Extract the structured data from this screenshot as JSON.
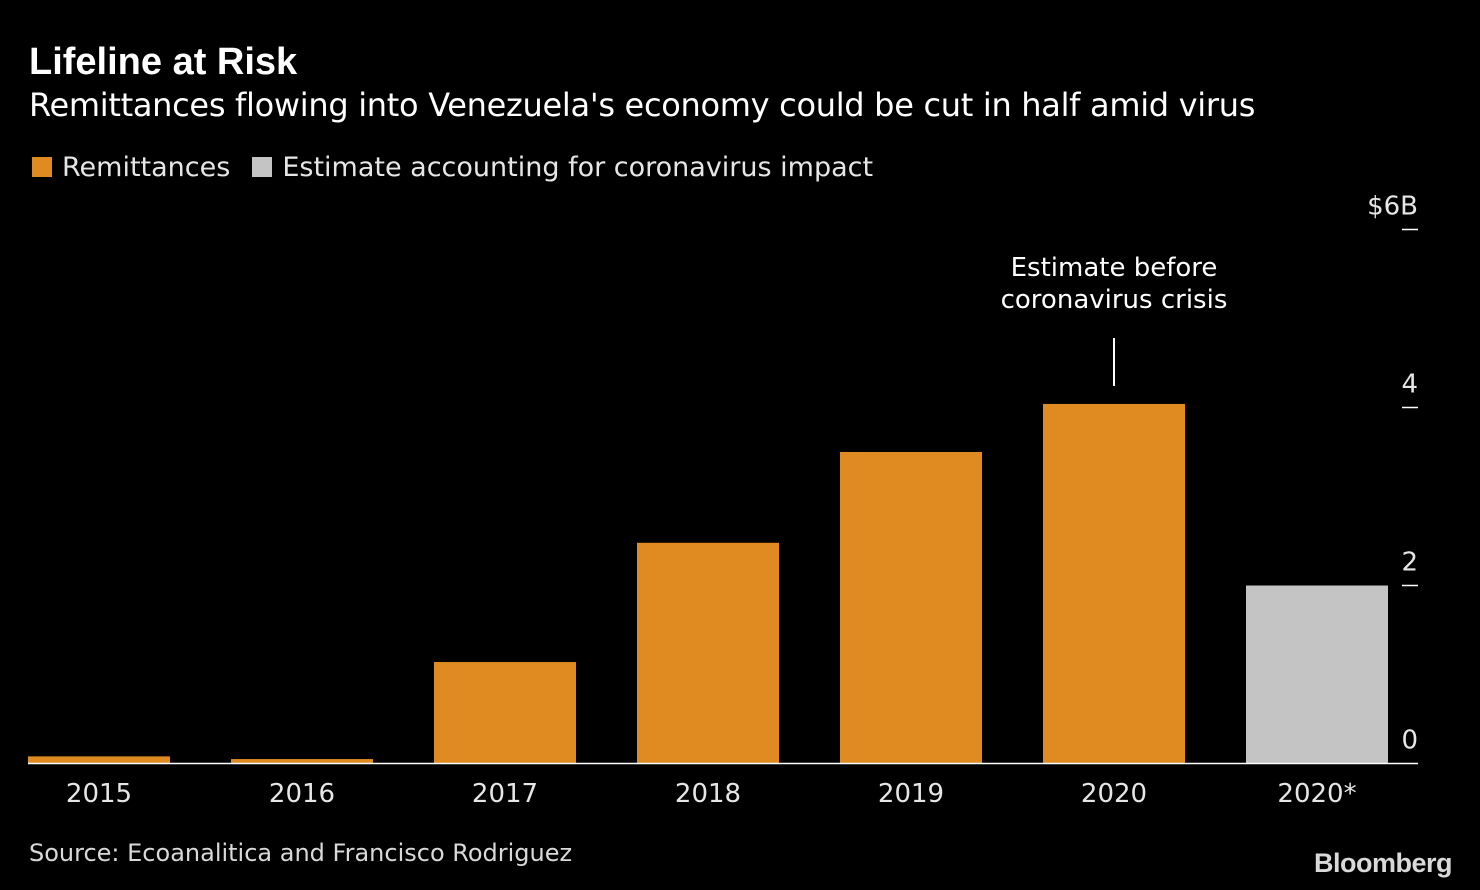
{
  "header": {
    "title": "Lifeline at Risk",
    "subtitle": "Remittances flowing into Venezuela's economy could be cut in half amid virus"
  },
  "legend": [
    {
      "label": "Remittances",
      "color": "#e08b22"
    },
    {
      "label": "Estimate accounting for coronavirus impact",
      "color": "#c4c4c4"
    }
  ],
  "footer": {
    "source": "Source: Ecoanalitica and Francisco Rodriguez",
    "brand": "Bloomberg"
  },
  "colors": {
    "background": "#000000",
    "remittances": "#e08b22",
    "estimate": "#c4c4c4",
    "text": "#ffffff",
    "axis_text": "#e6e6e6"
  },
  "chart_data": {
    "type": "bar",
    "title": "Lifeline at Risk",
    "subtitle": "Remittances flowing into Venezuela's economy could be cut in half amid virus",
    "categories": [
      "2015",
      "2016",
      "2017",
      "2018",
      "2019",
      "2020",
      "2020*"
    ],
    "series": [
      {
        "name": "Remittances",
        "color": "#e08b22",
        "values": [
          0.08,
          0.05,
          1.14,
          2.48,
          3.5,
          4.04,
          null
        ]
      },
      {
        "name": "Estimate accounting for coronavirus impact",
        "color": "#c4c4c4",
        "values": [
          null,
          null,
          null,
          null,
          null,
          null,
          2.0
        ]
      }
    ],
    "ylim": [
      0,
      6
    ],
    "yticks": [
      {
        "value": 0,
        "label": "0"
      },
      {
        "value": 2,
        "label": "2"
      },
      {
        "value": 4,
        "label": "4"
      },
      {
        "value": 6,
        "label": "$6B"
      }
    ],
    "y_axis_side": "right",
    "grid": false,
    "legend_position": "top-left",
    "annotation": {
      "category": "2020",
      "lines": [
        "Estimate before",
        "coronavirus crisis"
      ]
    }
  }
}
